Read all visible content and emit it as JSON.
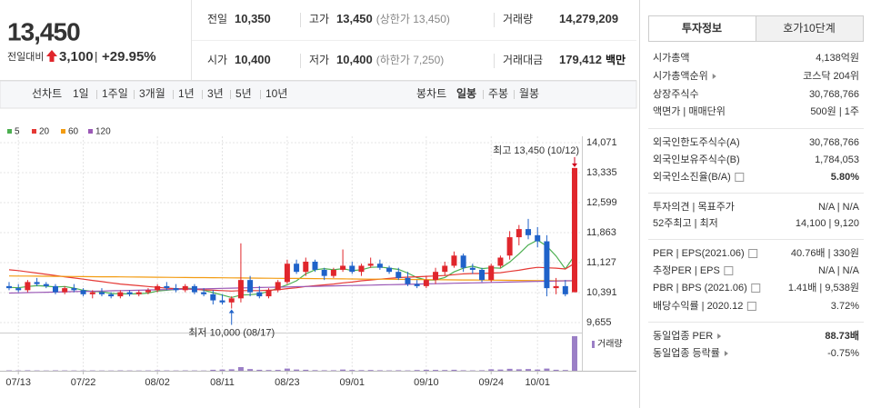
{
  "quote": {
    "price": "13,450",
    "change_label": "전일대비",
    "change": "3,100",
    "change_pct": "+29.95%"
  },
  "stats": [
    {
      "label": "전일",
      "value": "10,350"
    },
    {
      "label": "고가",
      "value": "13,450",
      "note": "(상한가 13,450)"
    },
    {
      "label": "거래량",
      "value": "14,279,209"
    },
    {
      "label": "시가",
      "value": "10,400"
    },
    {
      "label": "저가",
      "value": "10,400",
      "note": "(하한가 7,250)"
    },
    {
      "label": "거래대금",
      "value": "179,412",
      "unit": "백만"
    }
  ],
  "chart_tabs": {
    "line": [
      "선차트",
      "1일",
      "1주일",
      "3개월",
      "1년",
      "3년",
      "5년",
      "10년"
    ],
    "candle": [
      "봉차트",
      "일봉",
      "주봉",
      "월봉"
    ]
  },
  "info_tabs": [
    "투자정보",
    "호가10단계"
  ],
  "info": [
    [
      {
        "label": "시가총액",
        "value": "4,138억원"
      },
      {
        "label": "시가총액순위",
        "value": "코스닥 204위"
      },
      {
        "label": "상장주식수",
        "value": "30,768,766"
      },
      {
        "label": "액면가 | 매매단위",
        "value": "500원 | 1주"
      }
    ],
    [
      {
        "label": "외국인한도주식수(A)",
        "value": "30,768,766"
      },
      {
        "label": "외국인보유주식수(B)",
        "value": "1,784,053"
      },
      {
        "label": "외국인소진율(B/A)",
        "value": "5.80%"
      }
    ],
    [
      {
        "label": "투자의견 | 목표주가",
        "value": "N/A | N/A"
      },
      {
        "label": "52주최고 | 최저",
        "value": "14,100 | 9,120"
      }
    ],
    [
      {
        "label": "PER | EPS(2021.06)",
        "value": "40.76배 | 330원"
      },
      {
        "label": "추정PER | EPS",
        "value": "N/A | N/A"
      },
      {
        "label": "PBR | BPS (2021.06)",
        "value": "1.41배 | 9,538원"
      },
      {
        "label": "배당수익률 | 2020.12",
        "value": "3.72%"
      }
    ],
    [
      {
        "label": "동일업종 PER",
        "value": "88.73배"
      },
      {
        "label": "동일업종 등락률",
        "value": "-0.75%"
      }
    ]
  ],
  "chart_data": {
    "type": "candlestick",
    "up_color": "#e0262c",
    "down_color": "#1f62c9",
    "categories": [
      null,
      "07/13",
      null,
      null,
      null,
      null,
      null,
      null,
      "07/22",
      null,
      null,
      null,
      null,
      null,
      null,
      null,
      "08/02",
      null,
      null,
      null,
      null,
      null,
      null,
      "08/11",
      null,
      null,
      null,
      null,
      null,
      null,
      "08/23",
      null,
      null,
      null,
      null,
      null,
      null,
      "09/01",
      null,
      null,
      null,
      null,
      null,
      null,
      null,
      "09/10",
      null,
      null,
      null,
      null,
      null,
      null,
      "09/24",
      null,
      null,
      null,
      null,
      "10/01",
      null,
      null,
      null,
      null
    ],
    "open": [
      10550,
      10500,
      10450,
      10650,
      10600,
      10550,
      10400,
      10500,
      10450,
      10350,
      10400,
      10350,
      10300,
      10400,
      10350,
      10400,
      10450,
      10550,
      10500,
      10450,
      10550,
      10400,
      10350,
      10200,
      10150,
      10250,
      10700,
      10400,
      10300,
      10450,
      10650,
      11100,
      10900,
      11150,
      10950,
      10800,
      10950,
      11050,
      10900,
      11050,
      11100,
      11000,
      10900,
      10750,
      10600,
      10550,
      10700,
      10900,
      11050,
      11300,
      11000,
      10950,
      10700,
      11050,
      11300,
      11750,
      11950,
      11800,
      11650,
      10500,
      10550,
      10400
    ],
    "high": [
      10650,
      10600,
      10700,
      10750,
      10650,
      10600,
      10550,
      10600,
      10500,
      10450,
      10500,
      10400,
      10450,
      10450,
      10450,
      10500,
      10600,
      10650,
      10600,
      10600,
      10600,
      10500,
      10450,
      10350,
      10300,
      11600,
      10800,
      10550,
      10500,
      10700,
      11200,
      11200,
      11250,
      11200,
      11000,
      11000,
      11450,
      11150,
      11100,
      11250,
      11200,
      11050,
      11000,
      10900,
      10700,
      10800,
      11000,
      11150,
      11400,
      11350,
      11100,
      11000,
      11100,
      11300,
      11900,
      12050,
      12200,
      12000,
      11800,
      10750,
      10700,
      13450
    ],
    "low": [
      10450,
      10400,
      10400,
      10550,
      10500,
      10350,
      10350,
      10400,
      10300,
      10250,
      10300,
      10250,
      10250,
      10300,
      10300,
      10350,
      10400,
      10450,
      10400,
      10400,
      10350,
      10300,
      10100,
      10100,
      10000,
      10150,
      10300,
      10250,
      10250,
      10400,
      10600,
      10850,
      10800,
      10900,
      10700,
      10750,
      10900,
      10850,
      10800,
      11000,
      10950,
      10850,
      10700,
      10550,
      10500,
      10500,
      10600,
      10800,
      11000,
      10900,
      10850,
      10650,
      10650,
      11000,
      11200,
      11550,
      11700,
      11500,
      10300,
      10350,
      10300,
      10400
    ],
    "close": [
      10500,
      10450,
      10650,
      10600,
      10550,
      10400,
      10500,
      10450,
      10350,
      10400,
      10350,
      10300,
      10400,
      10350,
      10400,
      10450,
      10550,
      10500,
      10450,
      10550,
      10400,
      10350,
      10200,
      10150,
      10250,
      10700,
      10400,
      10300,
      10450,
      10650,
      11100,
      10900,
      11150,
      10950,
      10800,
      10950,
      11050,
      10900,
      11050,
      11100,
      11000,
      10900,
      10750,
      10600,
      10550,
      10700,
      10900,
      11050,
      11300,
      11000,
      10950,
      10700,
      11050,
      11250,
      11750,
      11950,
      11800,
      11650,
      10500,
      10550,
      10350,
      13450
    ],
    "volume": [
      150000,
      120000,
      180000,
      130000,
      110000,
      160000,
      140000,
      120000,
      100000,
      130000,
      110000,
      100000,
      150000,
      120000,
      110000,
      130000,
      170000,
      140000,
      120000,
      150000,
      130000,
      110000,
      400000,
      500000,
      600000,
      1500000,
      700000,
      400000,
      300000,
      350000,
      900000,
      500000,
      400000,
      250000,
      200000,
      200000,
      500000,
      300000,
      250000,
      300000,
      200000,
      150000,
      200000,
      150000,
      300000,
      400000,
      350000,
      300000,
      400000,
      200000,
      150000,
      200000,
      600000,
      500000,
      800000,
      600000,
      700000,
      500000,
      900000,
      400000,
      300000,
      14279209
    ],
    "volume_color": "#9b7fc6",
    "volume_label": "거래량",
    "vlim": [
      0,
      15000000
    ],
    "ma": [
      {
        "name": "5",
        "color": "#4caf50",
        "values": [
          10520,
          10510,
          10540,
          10560,
          10550,
          10530,
          10540,
          10500,
          10450,
          10420,
          10410,
          10370,
          10360,
          10360,
          10360,
          10380,
          10430,
          10450,
          10470,
          10500,
          10490,
          10450,
          10390,
          10330,
          10270,
          10330,
          10340,
          10360,
          10420,
          10500,
          10580,
          10680,
          10850,
          10950,
          10980,
          10950,
          10980,
          10930,
          10950,
          11010,
          11020,
          10990,
          10960,
          10870,
          10760,
          10700,
          10700,
          10760,
          10900,
          10990,
          11040,
          10980,
          11000,
          10990,
          11140,
          11340,
          11560,
          11680,
          11530,
          11290,
          10970,
          11300
        ]
      },
      {
        "name": "20",
        "color": "#e53935",
        "values": [
          10950,
          10930,
          10900,
          10870,
          10840,
          10810,
          10780,
          10750,
          10720,
          10690,
          10660,
          10630,
          10600,
          10580,
          10560,
          10540,
          10520,
          10500,
          10490,
          10480,
          10470,
          10460,
          10450,
          10440,
          10430,
          10440,
          10440,
          10440,
          10450,
          10460,
          10490,
          10510,
          10540,
          10560,
          10580,
          10600,
          10630,
          10650,
          10680,
          10700,
          10720,
          10740,
          10760,
          10770,
          10780,
          10790,
          10800,
          10810,
          10830,
          10850,
          10860,
          10860,
          10870,
          10880,
          10910,
          10940,
          10980,
          11010,
          11000,
          10990,
          10970,
          11110
        ]
      },
      {
        "name": "60",
        "color": "#f39c12",
        "values": [
          10800,
          10798,
          10796,
          10794,
          10792,
          10790,
          10788,
          10786,
          10784,
          10782,
          10780,
          10778,
          10776,
          10774,
          10772,
          10770,
          10768,
          10766,
          10764,
          10762,
          10760,
          10758,
          10756,
          10754,
          10752,
          10750,
          10748,
          10746,
          10744,
          10742,
          10740,
          10738,
          10736,
          10734,
          10732,
          10730,
          10728,
          10726,
          10724,
          10722,
          10720,
          10718,
          10716,
          10714,
          10712,
          10710,
          10708,
          10706,
          10704,
          10702,
          10700,
          10698,
          10696,
          10694,
          10692,
          10690,
          10688,
          10686,
          10684,
          10682,
          10680,
          10678
        ]
      },
      {
        "name": "120",
        "color": "#9b59b6",
        "values": [
          10380,
          10385,
          10390,
          10395,
          10400,
          10405,
          10410,
          10415,
          10420,
          10425,
          10430,
          10435,
          10440,
          10445,
          10450,
          10455,
          10460,
          10465,
          10470,
          10475,
          10480,
          10485,
          10490,
          10495,
          10500,
          10505,
          10510,
          10515,
          10520,
          10525,
          10530,
          10535,
          10540,
          10545,
          10550,
          10555,
          10560,
          10565,
          10570,
          10575,
          10580,
          10585,
          10590,
          10595,
          10600,
          10605,
          10610,
          10615,
          10620,
          10625,
          10630,
          10635,
          10640,
          10645,
          10650,
          10655,
          10660,
          10665,
          10670,
          10675,
          10680,
          10685
        ]
      }
    ],
    "ylim": [
      9655,
      14071
    ],
    "yticks": [
      {
        "value": 14071,
        "label": "14,071"
      },
      {
        "value": 13335,
        "label": "13,335"
      },
      {
        "value": 12599,
        "label": "12,599"
      },
      {
        "value": 11863,
        "label": "11,863"
      },
      {
        "value": 11127,
        "label": "11,127"
      },
      {
        "value": 10391,
        "label": "10,391"
      },
      {
        "value": 9655,
        "label": "9,655"
      }
    ],
    "annotations": [
      "최고 13,450 (10/12)",
      "최저 10,000 (08/17)"
    ]
  }
}
